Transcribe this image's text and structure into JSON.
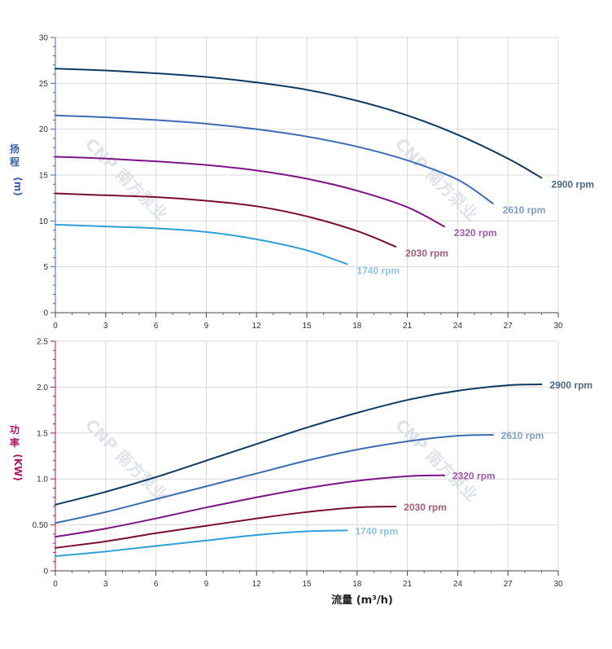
{
  "chart_data": [
    {
      "type": "line",
      "title": "",
      "ylabel": "扬程 (m)",
      "ylabel_color": "#3a5fb0",
      "ylim": [
        0,
        30
      ],
      "yticks": [
        "0",
        "5",
        "10",
        "15",
        "20",
        "25",
        "30"
      ],
      "xlim": [
        0,
        30
      ],
      "xticks": [
        "0",
        "3",
        "6",
        "9",
        "12",
        "15",
        "18",
        "21",
        "24",
        "27",
        "30"
      ],
      "grid": true,
      "series": [
        {
          "name": "2900 rpm",
          "color": "#0d3a63",
          "label_color": "#4d6985",
          "x": [
            0,
            3,
            6,
            9,
            12,
            15,
            18,
            21,
            24,
            27,
            29
          ],
          "y": [
            26.6,
            26.4,
            26.1,
            25.7,
            25.1,
            24.3,
            23.1,
            21.5,
            19.4,
            16.8,
            14.7
          ]
        },
        {
          "name": "2610 rpm",
          "color": "#3c6cb4",
          "label_color": "#7f9fca",
          "x": [
            0,
            3,
            6,
            9,
            12,
            15,
            18,
            21,
            24,
            26.1
          ],
          "y": [
            21.5,
            21.3,
            21.0,
            20.6,
            20.0,
            19.2,
            18.1,
            16.6,
            14.5,
            11.9
          ]
        },
        {
          "name": "2320 rpm",
          "color": "#7d1484",
          "label_color": "#a45aa8",
          "x": [
            0,
            3,
            6,
            9,
            12,
            15,
            18,
            21,
            23.2
          ],
          "y": [
            17.0,
            16.8,
            16.5,
            16.1,
            15.5,
            14.6,
            13.3,
            11.5,
            9.4
          ]
        },
        {
          "name": "2030 rpm",
          "color": "#7a0f2c",
          "label_color": "#a85d75",
          "x": [
            0,
            3,
            6,
            9,
            12,
            15,
            18,
            20.3
          ],
          "y": [
            13.0,
            12.8,
            12.6,
            12.2,
            11.6,
            10.5,
            8.9,
            7.2
          ]
        },
        {
          "name": "1740 rpm",
          "color": "#2f9fd8",
          "label_color": "#8cc6e8",
          "x": [
            0,
            3,
            6,
            9,
            12,
            15,
            17.4
          ],
          "y": [
            9.6,
            9.4,
            9.2,
            8.8,
            8.0,
            6.8,
            5.3
          ]
        }
      ]
    },
    {
      "type": "line",
      "title": "",
      "ylabel": "功率 (KW)",
      "ylabel_color": "#b3146b",
      "xlabel": "流量 (m³/h)",
      "ylim": [
        0,
        2.5
      ],
      "yticks": [
        "0",
        "0.50",
        "1.0",
        "1.5",
        "2.0",
        "2.5"
      ],
      "xlim": [
        0,
        30
      ],
      "xticks": [
        "0",
        "3",
        "6",
        "9",
        "12",
        "15",
        "18",
        "21",
        "24",
        "27",
        "30"
      ],
      "grid": true,
      "series": [
        {
          "name": "2900 rpm",
          "color": "#0d3a63",
          "label_color": "#4d6985",
          "x": [
            0,
            3,
            6,
            9,
            12,
            15,
            18,
            21,
            24,
            27,
            29
          ],
          "y": [
            0.72,
            0.86,
            1.02,
            1.2,
            1.38,
            1.56,
            1.72,
            1.86,
            1.96,
            2.02,
            2.03
          ]
        },
        {
          "name": "2610 rpm",
          "color": "#3c6cb4",
          "label_color": "#7f9fca",
          "x": [
            0,
            3,
            6,
            9,
            12,
            15,
            18,
            21,
            24,
            26.1
          ],
          "y": [
            0.52,
            0.64,
            0.78,
            0.92,
            1.06,
            1.2,
            1.32,
            1.41,
            1.47,
            1.48
          ]
        },
        {
          "name": "2320 rpm",
          "color": "#7d1484",
          "label_color": "#a45aa8",
          "x": [
            0,
            3,
            6,
            9,
            12,
            15,
            18,
            21,
            23.2
          ],
          "y": [
            0.37,
            0.46,
            0.57,
            0.69,
            0.8,
            0.9,
            0.98,
            1.03,
            1.04
          ]
        },
        {
          "name": "2030 rpm",
          "color": "#7a0f2c",
          "label_color": "#a85d75",
          "x": [
            0,
            3,
            6,
            9,
            12,
            15,
            18,
            20.3
          ],
          "y": [
            0.25,
            0.32,
            0.41,
            0.49,
            0.57,
            0.64,
            0.69,
            0.7
          ]
        },
        {
          "name": "1740 rpm",
          "color": "#2f9fd8",
          "label_color": "#8cc6e8",
          "x": [
            0,
            3,
            6,
            9,
            12,
            15,
            17.4
          ],
          "y": [
            0.16,
            0.21,
            0.27,
            0.33,
            0.39,
            0.43,
            0.44
          ]
        }
      ]
    }
  ],
  "watermark": "CNP 南方泵业"
}
